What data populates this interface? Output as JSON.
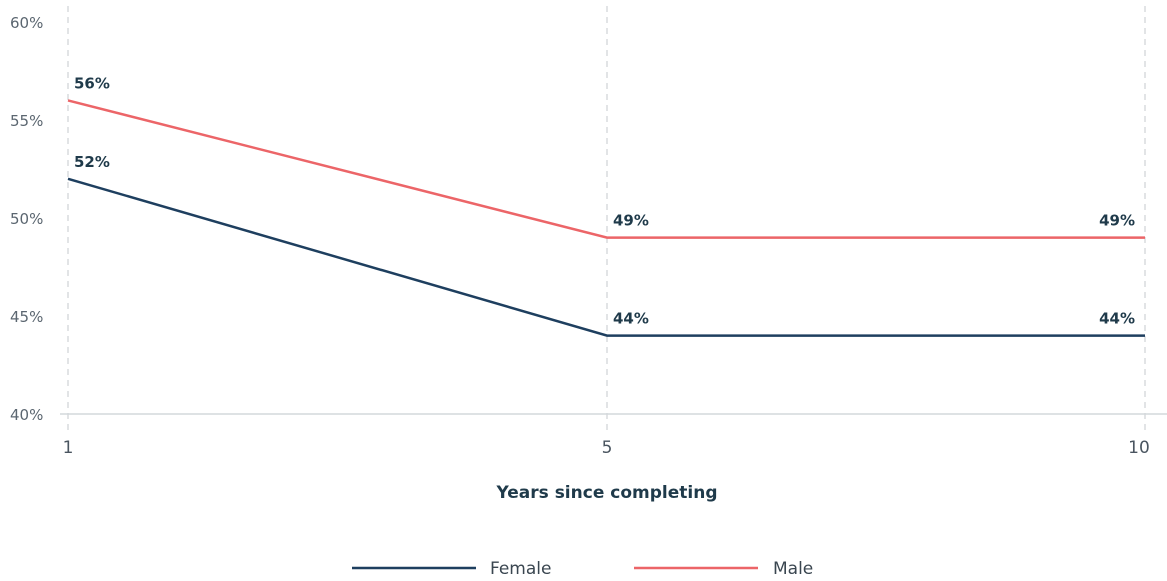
{
  "chart_data": {
    "type": "line",
    "title": "",
    "xlabel": "Years since completing",
    "ylabel": "",
    "categories": [
      "1",
      "5",
      "10"
    ],
    "x": [
      1,
      5,
      10
    ],
    "ylim": [
      40,
      60
    ],
    "yticks": [
      "40%",
      "45%",
      "50%",
      "55%",
      "60%"
    ],
    "ytick_values": [
      40,
      45,
      50,
      55,
      60
    ],
    "grid": "vertical dashed at x ticks",
    "legend": "bottom-center",
    "series": [
      {
        "name": "Female",
        "values": [
          52,
          44,
          44
        ],
        "labels": [
          "52%",
          "44%",
          "44%"
        ],
        "color": "#1e3f5f"
      },
      {
        "name": "Male",
        "values": [
          56,
          49,
          49
        ],
        "labels": [
          "56%",
          "49%",
          "49%"
        ],
        "color": "#ec6568"
      }
    ]
  }
}
